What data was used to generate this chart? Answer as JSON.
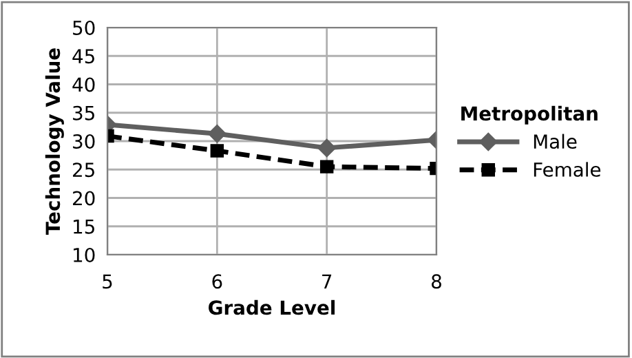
{
  "chart_data": {
    "type": "line",
    "xlabel": "Grade Level",
    "ylabel": "Technology Value",
    "legend_title": "Metropolitan",
    "x": [
      5,
      6,
      7,
      8
    ],
    "xlim": [
      5,
      8
    ],
    "xticks": [
      5,
      6,
      7,
      8
    ],
    "ylim": [
      10,
      50
    ],
    "yticks": [
      10,
      15,
      20,
      25,
      30,
      35,
      40,
      45,
      50
    ],
    "grid": true,
    "legend": "right",
    "series": [
      {
        "name": "Male",
        "color": "#5f5f5f",
        "values": [
          32.9,
          31.3,
          28.8,
          30.2
        ],
        "marker": "diamond",
        "line_style": "solid"
      },
      {
        "name": "Female",
        "color": "#000000",
        "values": [
          30.9,
          28.3,
          25.5,
          25.2
        ],
        "marker": "square",
        "line_style": "dashed"
      }
    ]
  }
}
